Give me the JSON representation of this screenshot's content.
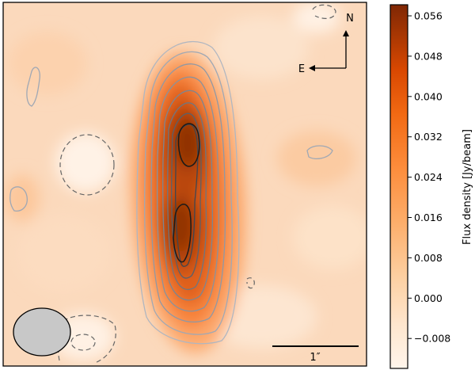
{
  "compass": {
    "north": "N",
    "east": "E"
  },
  "scale_bar": {
    "label": "1″"
  },
  "colorbar": {
    "label": "Flux density [Jy/beam]",
    "ticks": [
      "0.056",
      "0.048",
      "0.040",
      "0.032",
      "0.024",
      "0.016",
      "0.008",
      "0.000",
      "−0.008"
    ],
    "colors": {
      "low": "#fff5eb",
      "mid": "#fd8d3c",
      "high": "#7f2704"
    }
  },
  "beam": {
    "fill": "#c8c8c8"
  }
}
